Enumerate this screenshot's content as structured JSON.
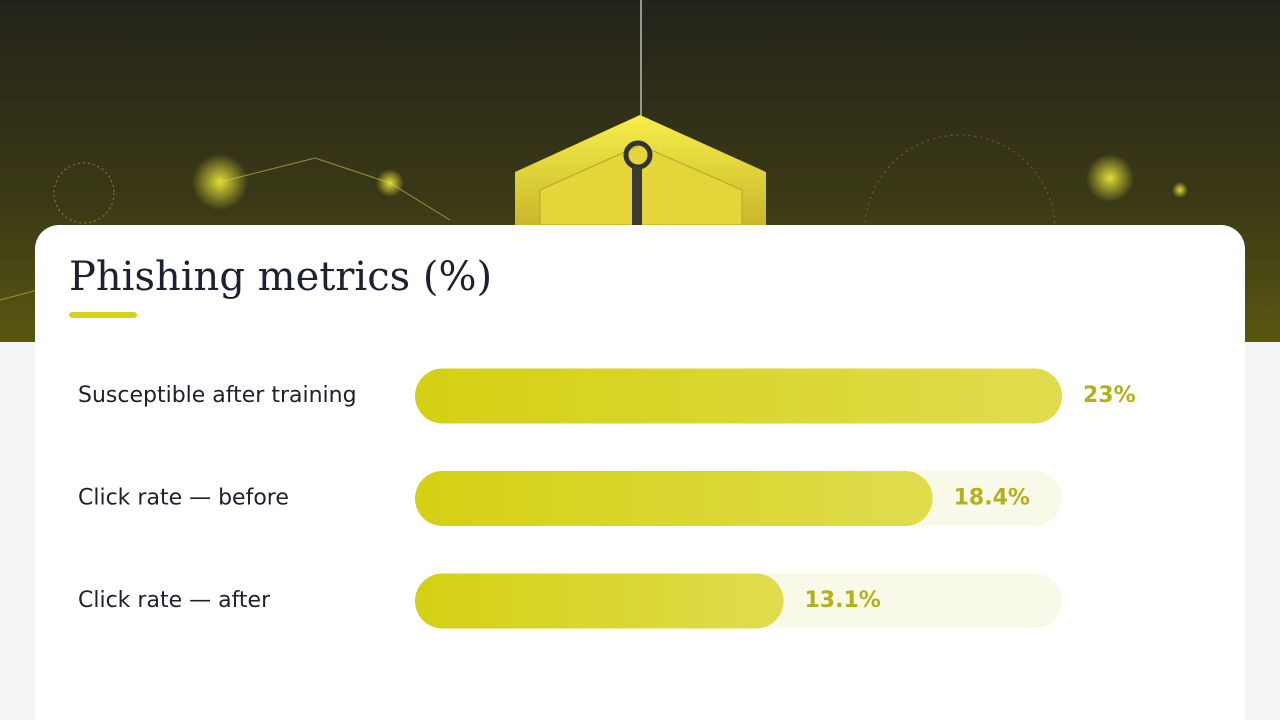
{
  "chart_data": {
    "type": "bar",
    "orientation": "horizontal",
    "title": "Phishing metrics (%)",
    "categories": [
      "Susceptible after training",
      "Click rate — before",
      "Click rate — after"
    ],
    "values": [
      23,
      18.4,
      13.1
    ],
    "value_labels": [
      "23%",
      "18.4%",
      "13.1%"
    ],
    "color": "#d6d31a"
  }
}
